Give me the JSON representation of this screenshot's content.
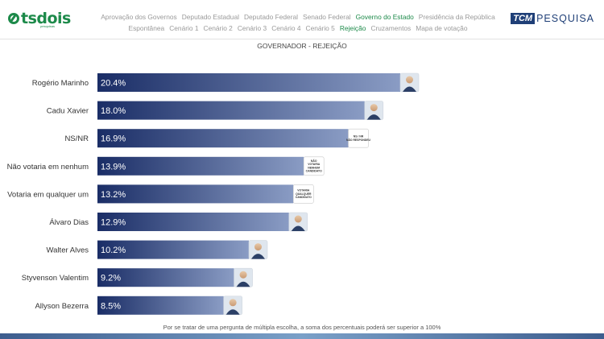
{
  "brand": {
    "name": "tsdois",
    "tagline": "pesquisas"
  },
  "nav": {
    "row1": [
      "Aprovação dos Governos",
      "Deputado Estadual",
      "Deputado Federal",
      "Senado Federal",
      "Governo do Estado",
      "Presidência da República"
    ],
    "row2": [
      "Espontânea",
      "Cenário 1",
      "Cenário 2",
      "Cenário 3",
      "Cenário 4",
      "Cenário 5",
      "Rejeição",
      "Cruzamentos",
      "Mapa de votação"
    ],
    "active_row1": "Governo do Estado",
    "active_row2": "Rejeição"
  },
  "partner": {
    "box": "TCM",
    "text": "PESQUISA"
  },
  "chart_data": {
    "type": "bar",
    "orientation": "horizontal",
    "title": "GOVERNADOR - REJEIÇÃO",
    "categories": [
      "Rogério Marinho",
      "Cadu Xavier",
      "NS/NR",
      "Não votaria em nenhum",
      "Votaria em qualquer um",
      "Álvaro Dias",
      "Walter Alves",
      "Styvenson Valentim",
      "Allyson Bezerra"
    ],
    "values": [
      20.4,
      18.0,
      16.9,
      13.9,
      13.2,
      12.9,
      10.2,
      9.2,
      8.5
    ],
    "value_labels": [
      "20.4%",
      "18.0%",
      "16.9%",
      "13.9%",
      "13.2%",
      "12.9%",
      "10.2%",
      "9.2%",
      "8.5%"
    ],
    "end_badges": [
      "",
      "",
      "NS / NR\nNÃO RESPONDEU",
      "NÃO\nVOTARIA\nNENHUM\nCANDIDATO",
      "VOTARIA\nQUALQUER\nCANDIDATO",
      "",
      "",
      "",
      ""
    ],
    "end_kind": [
      "photo",
      "photo",
      "text",
      "text",
      "text",
      "photo",
      "photo",
      "photo",
      "photo"
    ],
    "bar_gradient": [
      "#1a2d66",
      "#8a9cc4"
    ],
    "xlim": [
      0,
      20.4
    ]
  },
  "footer": "Por se tratar de uma pergunta de múltipla escolha, a soma dos percentuais poderá ser superior a 100%"
}
